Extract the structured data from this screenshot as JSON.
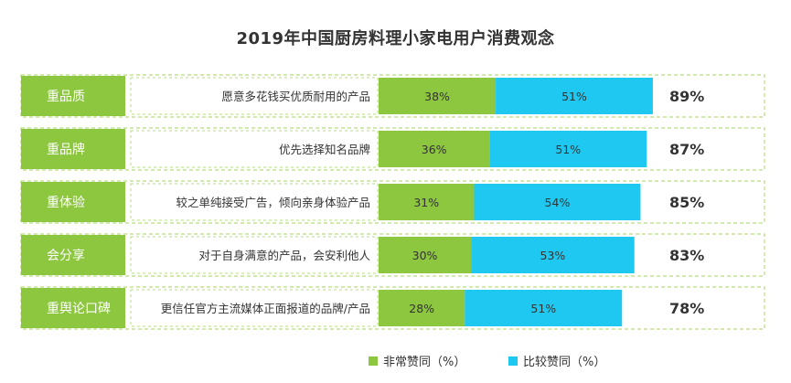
{
  "chart_data": {
    "type": "bar",
    "stacked": true,
    "orientation": "horizontal",
    "title": "2019年中国厨房料理小家电用户消费观念",
    "categories": [
      "重品质",
      "重品牌",
      "重体验",
      "会分享",
      "重舆论口碑"
    ],
    "descriptions": [
      "愿意多花钱买优质耐用的产品",
      "优先选择知名品牌",
      "较之单纯接受广告，倾向亲身体验产品",
      "对于自身满意的产品，会安利他人",
      "更信任官方主流媒体正面报道的品牌/产品"
    ],
    "series": [
      {
        "name": "非常赞同（%）",
        "values": [
          38,
          36,
          31,
          30,
          28
        ],
        "labels": [
          "38%",
          "36%",
          "31%",
          "30%",
          "28%"
        ]
      },
      {
        "name": "比较赞同（%）",
        "values": [
          51,
          51,
          54,
          53,
          51
        ],
        "labels": [
          "51%",
          "51%",
          "54%",
          "53%",
          "51%"
        ]
      }
    ],
    "totals": [
      "89%",
      "87%",
      "85%",
      "83%",
      "78%"
    ],
    "legend_position": "bottom",
    "colors": {
      "category_box": "#8dc63f",
      "very_agree": "#8dc63f",
      "relatively_agree": "#1ec8f0",
      "dashed_border": "#b7dc7f"
    }
  }
}
